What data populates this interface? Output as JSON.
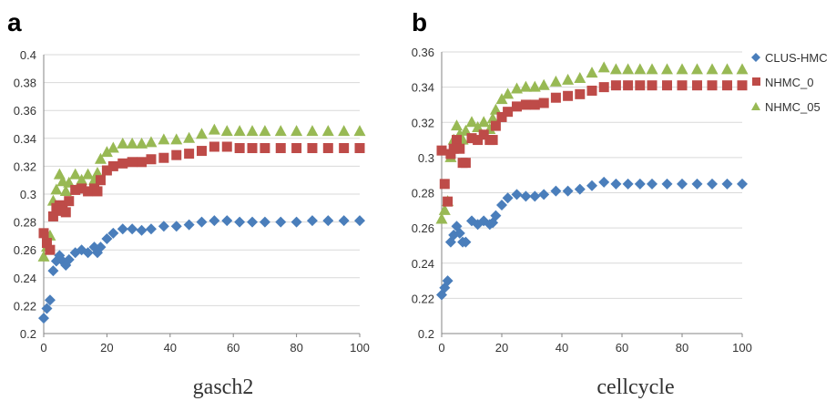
{
  "chart_data": [
    {
      "type": "scatter",
      "panel_label": "a",
      "xlabel": "gasch2",
      "ylabel": "",
      "xlim": [
        0,
        100
      ],
      "ylim": [
        0.2,
        0.4
      ],
      "x_ticks": [
        "0",
        "20",
        "40",
        "60",
        "80",
        "100"
      ],
      "y_ticks": [
        "0.2",
        "0.22",
        "0.24",
        "0.26",
        "0.28",
        "0.3",
        "0.32",
        "0.34",
        "0.36",
        "0.38",
        "0.4"
      ],
      "grid": "horizontal",
      "series": [
        {
          "name": "CLUS-HMC",
          "marker": "diamond",
          "color": "#4a7ebb",
          "x": [
            0,
            1,
            2,
            3,
            4,
            5,
            6,
            7,
            8,
            10,
            12,
            14,
            16,
            17,
            18,
            20,
            22,
            25,
            28,
            31,
            34,
            38,
            42,
            46,
            50,
            54,
            58,
            62,
            66,
            70,
            75,
            80,
            85,
            90,
            95,
            100
          ],
          "y": [
            0.211,
            0.218,
            0.224,
            0.245,
            0.252,
            0.256,
            0.252,
            0.249,
            0.253,
            0.258,
            0.26,
            0.258,
            0.262,
            0.258,
            0.262,
            0.268,
            0.272,
            0.275,
            0.275,
            0.274,
            0.275,
            0.277,
            0.277,
            0.278,
            0.28,
            0.281,
            0.281,
            0.28,
            0.28,
            0.28,
            0.28,
            0.28,
            0.281,
            0.281,
            0.281,
            0.281
          ]
        },
        {
          "name": "NHMC_0",
          "marker": "square",
          "color": "#be4b48",
          "x": [
            0,
            1,
            2,
            3,
            4,
            5,
            6,
            7,
            8,
            10,
            12,
            14,
            16,
            17,
            18,
            20,
            22,
            25,
            28,
            31,
            34,
            38,
            42,
            46,
            50,
            54,
            58,
            62,
            66,
            70,
            75,
            80,
            85,
            90,
            95,
            100
          ],
          "y": [
            0.272,
            0.265,
            0.26,
            0.284,
            0.29,
            0.292,
            0.288,
            0.287,
            0.295,
            0.303,
            0.304,
            0.302,
            0.304,
            0.302,
            0.31,
            0.317,
            0.32,
            0.322,
            0.323,
            0.323,
            0.325,
            0.326,
            0.328,
            0.329,
            0.331,
            0.334,
            0.334,
            0.333,
            0.333,
            0.333,
            0.333,
            0.333,
            0.333,
            0.333,
            0.333,
            0.333
          ]
        },
        {
          "name": "NHMC_05",
          "marker": "triangle",
          "color": "#98b954",
          "x": [
            0,
            1,
            2,
            3,
            4,
            5,
            6,
            7,
            8,
            10,
            12,
            14,
            16,
            17,
            18,
            20,
            22,
            25,
            28,
            31,
            34,
            38,
            42,
            46,
            50,
            54,
            58,
            62,
            66,
            70,
            75,
            80,
            85,
            90,
            95,
            100
          ],
          "y": [
            0.255,
            0.262,
            0.27,
            0.295,
            0.303,
            0.314,
            0.309,
            0.302,
            0.308,
            0.314,
            0.31,
            0.314,
            0.31,
            0.315,
            0.325,
            0.33,
            0.333,
            0.336,
            0.336,
            0.336,
            0.337,
            0.339,
            0.339,
            0.34,
            0.343,
            0.346,
            0.345,
            0.345,
            0.345,
            0.345,
            0.345,
            0.345,
            0.345,
            0.345,
            0.345,
            0.345
          ]
        }
      ]
    },
    {
      "type": "scatter",
      "panel_label": "b",
      "xlabel": "cellcycle",
      "ylabel": "",
      "xlim": [
        0,
        100
      ],
      "ylim": [
        0.2,
        0.36
      ],
      "x_ticks": [
        "0",
        "20",
        "40",
        "60",
        "80",
        "100"
      ],
      "y_ticks": [
        "0.2",
        "0.22",
        "0.24",
        "0.26",
        "0.28",
        "0.3",
        "0.32",
        "0.34",
        "0.36"
      ],
      "grid": "horizontal",
      "legend_position": "right",
      "series": [
        {
          "name": "CLUS-HMC",
          "marker": "diamond",
          "color": "#4a7ebb",
          "x": [
            0,
            1,
            2,
            3,
            4,
            5,
            6,
            7,
            8,
            10,
            12,
            14,
            16,
            17,
            18,
            20,
            22,
            25,
            28,
            31,
            34,
            38,
            42,
            46,
            50,
            54,
            58,
            62,
            66,
            70,
            75,
            80,
            85,
            90,
            95,
            100
          ],
          "y": [
            0.222,
            0.226,
            0.23,
            0.252,
            0.256,
            0.261,
            0.257,
            0.252,
            0.252,
            0.264,
            0.262,
            0.264,
            0.262,
            0.263,
            0.267,
            0.273,
            0.277,
            0.279,
            0.278,
            0.278,
            0.279,
            0.281,
            0.281,
            0.282,
            0.284,
            0.286,
            0.285,
            0.285,
            0.285,
            0.285,
            0.285,
            0.285,
            0.285,
            0.285,
            0.285,
            0.285
          ]
        },
        {
          "name": "NHMC_0",
          "marker": "square",
          "color": "#be4b48",
          "x": [
            0,
            1,
            2,
            3,
            4,
            5,
            6,
            7,
            8,
            10,
            12,
            14,
            16,
            17,
            18,
            20,
            22,
            25,
            28,
            31,
            34,
            38,
            42,
            46,
            50,
            54,
            58,
            62,
            66,
            70,
            75,
            80,
            85,
            90,
            95,
            100
          ],
          "y": [
            0.304,
            0.285,
            0.275,
            0.302,
            0.305,
            0.31,
            0.305,
            0.297,
            0.297,
            0.311,
            0.31,
            0.313,
            0.31,
            0.31,
            0.318,
            0.323,
            0.326,
            0.329,
            0.33,
            0.33,
            0.331,
            0.334,
            0.335,
            0.336,
            0.338,
            0.34,
            0.341,
            0.341,
            0.341,
            0.341,
            0.341,
            0.341,
            0.341,
            0.341,
            0.341,
            0.341
          ]
        },
        {
          "name": "NHMC_05",
          "marker": "triangle",
          "color": "#98b954",
          "x": [
            0,
            1,
            2,
            3,
            4,
            5,
            6,
            7,
            8,
            10,
            12,
            14,
            16,
            17,
            18,
            20,
            22,
            25,
            28,
            31,
            34,
            38,
            42,
            46,
            50,
            54,
            58,
            62,
            66,
            70,
            75,
            80,
            85,
            90,
            95,
            100
          ],
          "y": [
            0.265,
            0.27,
            0.275,
            0.3,
            0.31,
            0.318,
            0.313,
            0.31,
            0.315,
            0.32,
            0.317,
            0.32,
            0.316,
            0.322,
            0.327,
            0.333,
            0.336,
            0.339,
            0.34,
            0.34,
            0.341,
            0.343,
            0.344,
            0.345,
            0.348,
            0.351,
            0.35,
            0.35,
            0.35,
            0.35,
            0.35,
            0.35,
            0.35,
            0.35,
            0.35,
            0.35
          ]
        }
      ]
    }
  ]
}
